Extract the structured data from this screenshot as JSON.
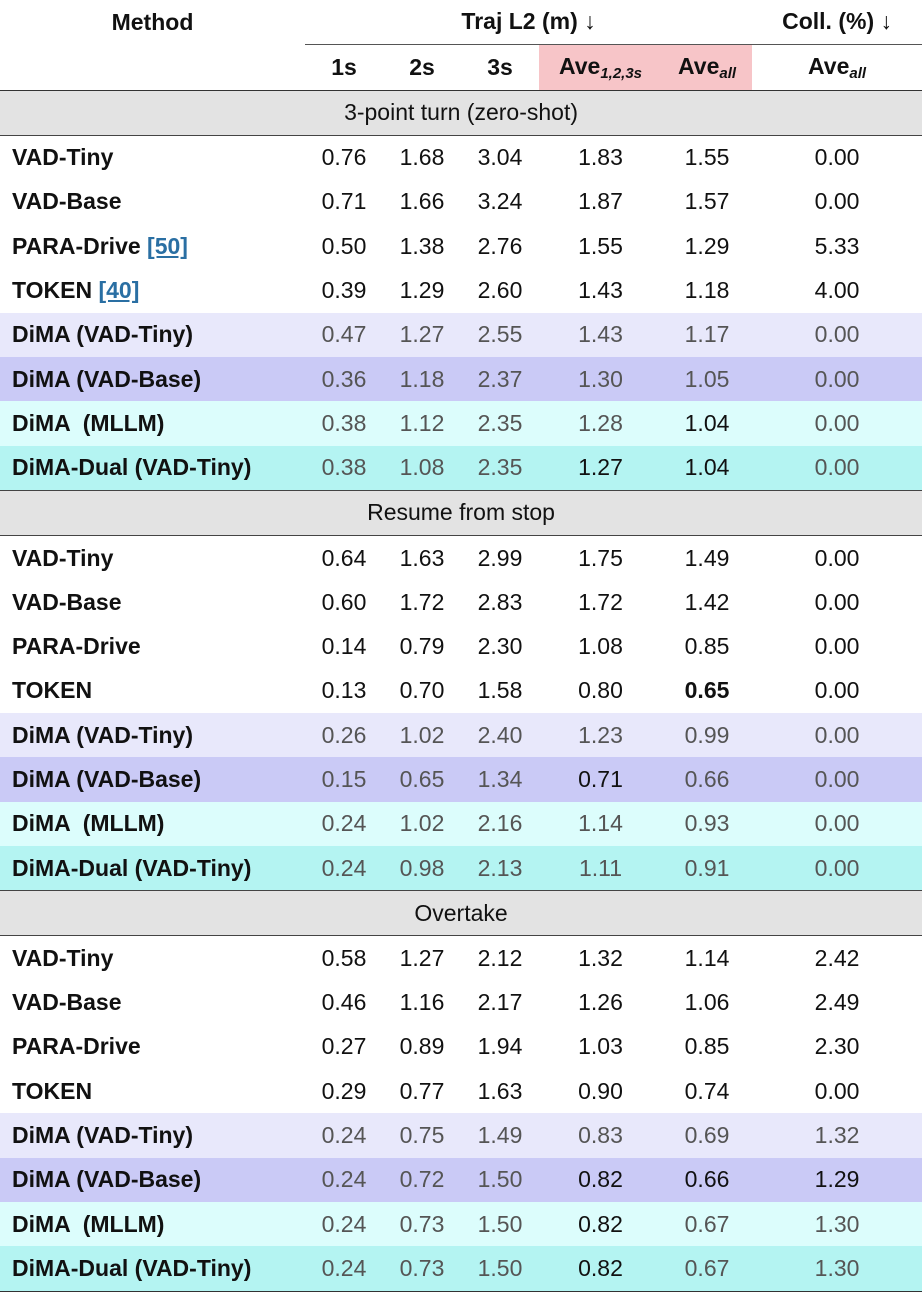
{
  "header": {
    "method": "Method",
    "traj": "Traj L2 (m) ↓",
    "coll": "Coll. (%) ↓",
    "columns": [
      {
        "text": "1s"
      },
      {
        "text": "2s"
      },
      {
        "text": "3s"
      },
      {
        "text": "Ave",
        "sub": "1,2,3s",
        "color": "#f7c5c8"
      },
      {
        "text": "Ave",
        "sub": "all",
        "color": "#f7c5c8"
      },
      {
        "text": "Ave",
        "sub": "all"
      }
    ]
  },
  "sections": [
    {
      "title": "3-point turn (zero-shot)",
      "rows": [
        {
          "method": "VAD-Tiny",
          "cells": [
            "0.76",
            "1.68",
            "3.04",
            "1.83",
            "1.55",
            "0.00"
          ],
          "bold": []
        },
        {
          "method": "VAD-Base",
          "cells": [
            "0.71",
            "1.66",
            "3.24",
            "1.87",
            "1.57",
            "0.00"
          ],
          "bold": []
        },
        {
          "method": "PARA-Drive",
          "ref": "[50]",
          "cells": [
            "0.50",
            "1.38",
            "2.76",
            "1.55",
            "1.29",
            "5.33"
          ],
          "bold": []
        },
        {
          "method": "TOKEN",
          "ref": "[40]",
          "cells": [
            "0.39",
            "1.29",
            "2.60",
            "1.43",
            "1.18",
            "4.00"
          ],
          "bold": []
        },
        {
          "method": "DiMA (VAD-Tiny)",
          "color": "#e8e8fb",
          "cells": [
            "0.47",
            "1.27",
            "2.55",
            "1.43",
            "1.17",
            "0.00"
          ],
          "bold": []
        },
        {
          "method": "DiMA (VAD-Base)",
          "color": "#cacaf6",
          "cells": [
            "0.36",
            "1.18",
            "2.37",
            "1.30",
            "1.05",
            "0.00"
          ],
          "bold": []
        },
        {
          "method": "DiMA  (MLLM)",
          "color": "#dcfdfc",
          "cells": [
            "0.38",
            "1.12",
            "2.35",
            "1.28",
            "1.04",
            "0.00"
          ],
          "bold": [
            4
          ]
        },
        {
          "method": "DiMA-Dual (VAD-Tiny)",
          "color": "#b4f4f2",
          "cells": [
            "0.38",
            "1.08",
            "2.35",
            "1.27",
            "1.04",
            "0.00"
          ],
          "bold": [
            3,
            4
          ]
        }
      ]
    },
    {
      "title": "Resume from stop",
      "rows": [
        {
          "method": "VAD-Tiny",
          "cells": [
            "0.64",
            "1.63",
            "2.99",
            "1.75",
            "1.49",
            "0.00"
          ],
          "bold": []
        },
        {
          "method": "VAD-Base",
          "cells": [
            "0.60",
            "1.72",
            "2.83",
            "1.72",
            "1.42",
            "0.00"
          ],
          "bold": []
        },
        {
          "method": "PARA-Drive",
          "cells": [
            "0.14",
            "0.79",
            "2.30",
            "1.08",
            "0.85",
            "0.00"
          ],
          "bold": []
        },
        {
          "method": "TOKEN",
          "cells": [
            "0.13",
            "0.70",
            "1.58",
            "0.80",
            "0.65",
            "0.00"
          ],
          "bold": [
            4
          ]
        },
        {
          "method": "DiMA (VAD-Tiny)",
          "color": "#e8e8fb",
          "cells": [
            "0.26",
            "1.02",
            "2.40",
            "1.23",
            "0.99",
            "0.00"
          ],
          "bold": []
        },
        {
          "method": "DiMA (VAD-Base)",
          "color": "#cacaf6",
          "cells": [
            "0.15",
            "0.65",
            "1.34",
            "0.71",
            "0.66",
            "0.00"
          ],
          "bold": [
            3
          ]
        },
        {
          "method": "DiMA  (MLLM)",
          "color": "#dcfdfc",
          "cells": [
            "0.24",
            "1.02",
            "2.16",
            "1.14",
            "0.93",
            "0.00"
          ],
          "bold": []
        },
        {
          "method": "DiMA-Dual (VAD-Tiny)",
          "color": "#b4f4f2",
          "cells": [
            "0.24",
            "0.98",
            "2.13",
            "1.11",
            "0.91",
            "0.00"
          ],
          "bold": []
        }
      ]
    },
    {
      "title": "Overtake",
      "rows": [
        {
          "method": "VAD-Tiny",
          "cells": [
            "0.58",
            "1.27",
            "2.12",
            "1.32",
            "1.14",
            "2.42"
          ],
          "bold": []
        },
        {
          "method": "VAD-Base",
          "cells": [
            "0.46",
            "1.16",
            "2.17",
            "1.26",
            "1.06",
            "2.49"
          ],
          "bold": []
        },
        {
          "method": "PARA-Drive",
          "cells": [
            "0.27",
            "0.89",
            "1.94",
            "1.03",
            "0.85",
            "2.30"
          ],
          "bold": []
        },
        {
          "method": "TOKEN",
          "cells": [
            "0.29",
            "0.77",
            "1.63",
            "0.90",
            "0.74",
            "0.00"
          ],
          "bold": []
        },
        {
          "method": "DiMA (VAD-Tiny)",
          "color": "#e8e8fb",
          "cells": [
            "0.24",
            "0.75",
            "1.49",
            "0.83",
            "0.69",
            "1.32"
          ],
          "bold": []
        },
        {
          "method": "DiMA (VAD-Base)",
          "color": "#cacaf6",
          "cells": [
            "0.24",
            "0.72",
            "1.50",
            "0.82",
            "0.66",
            "1.29"
          ],
          "bold": [
            3,
            4,
            5
          ]
        },
        {
          "method": "DiMA  (MLLM)",
          "color": "#dcfdfc",
          "cells": [
            "0.24",
            "0.73",
            "1.50",
            "0.82",
            "0.67",
            "1.30"
          ],
          "bold": [
            3
          ]
        },
        {
          "method": "DiMA-Dual (VAD-Tiny)",
          "color": "#b4f4f2",
          "cells": [
            "0.24",
            "0.73",
            "1.50",
            "0.82",
            "0.67",
            "1.30"
          ],
          "bold": [
            3
          ]
        }
      ]
    }
  ]
}
